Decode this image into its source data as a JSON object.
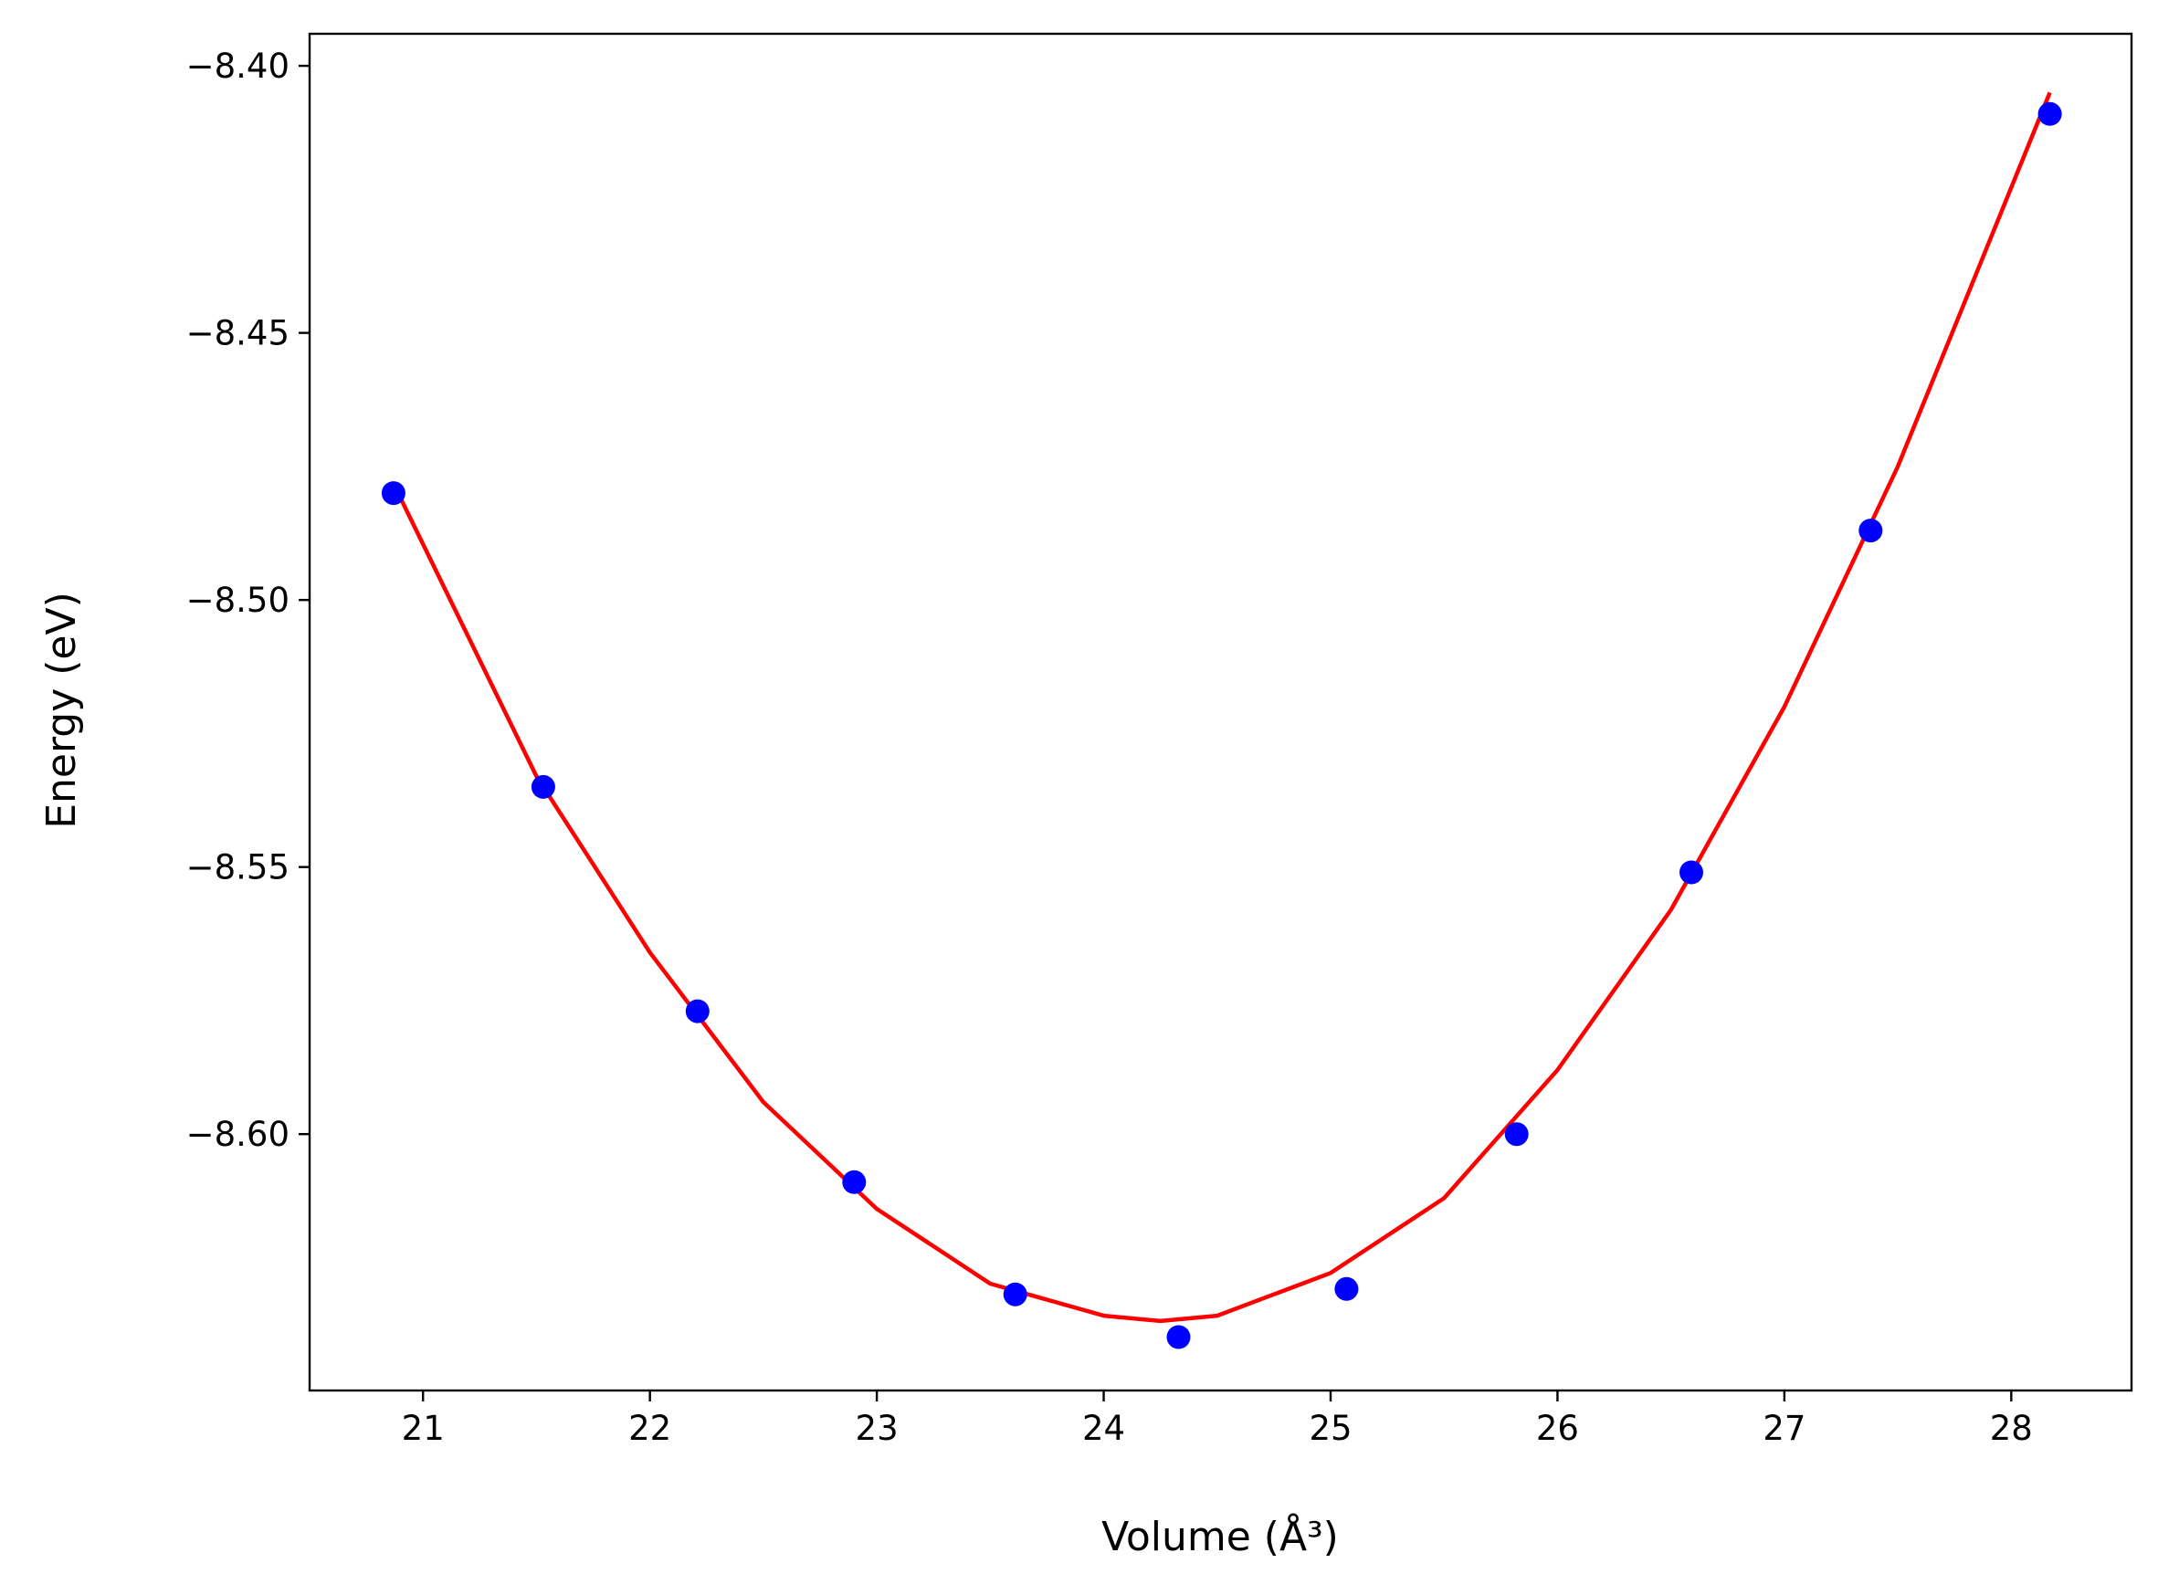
{
  "chart_data": {
    "type": "scatter",
    "title": "",
    "xlabel": "Volume (Å³)",
    "ylabel": "Energy (eV)",
    "xlim": [
      20.5,
      28.53
    ],
    "ylim": [
      -8.648,
      -8.394
    ],
    "x_ticks": [
      21,
      22,
      23,
      24,
      25,
      26,
      27,
      28
    ],
    "x_tick_labels": [
      "21",
      "22",
      "23",
      "24",
      "25",
      "26",
      "27",
      "28"
    ],
    "y_ticks": [
      -8.4,
      -8.45,
      -8.5,
      -8.55,
      -8.6
    ],
    "y_tick_labels": [
      "−8.40",
      "−8.45",
      "−8.50",
      "−8.55",
      "−8.60"
    ],
    "grid": false,
    "series": [
      {
        "type": "scatter",
        "color": "#0000ff",
        "x": [
          20.87,
          21.53,
          22.21,
          22.9,
          23.61,
          24.33,
          25.07,
          25.82,
          26.59,
          27.38,
          28.17
        ],
        "y": [
          -8.48,
          -8.535,
          -8.577,
          -8.609,
          -8.63,
          -8.638,
          -8.629,
          -8.6,
          -8.551,
          -8.487,
          -8.409
        ]
      },
      {
        "type": "line",
        "color": "#ff0000",
        "x": [
          20.89,
          21.5,
          22.0,
          22.5,
          23.0,
          23.5,
          24.0,
          24.25,
          24.5,
          25.0,
          25.5,
          26.0,
          26.5,
          27.0,
          27.5,
          28.17
        ],
        "y": [
          -8.48,
          -8.533,
          -8.566,
          -8.594,
          -8.614,
          -8.628,
          -8.634,
          -8.635,
          -8.634,
          -8.626,
          -8.612,
          -8.588,
          -8.558,
          -8.52,
          -8.475,
          -8.405
        ]
      }
    ]
  }
}
